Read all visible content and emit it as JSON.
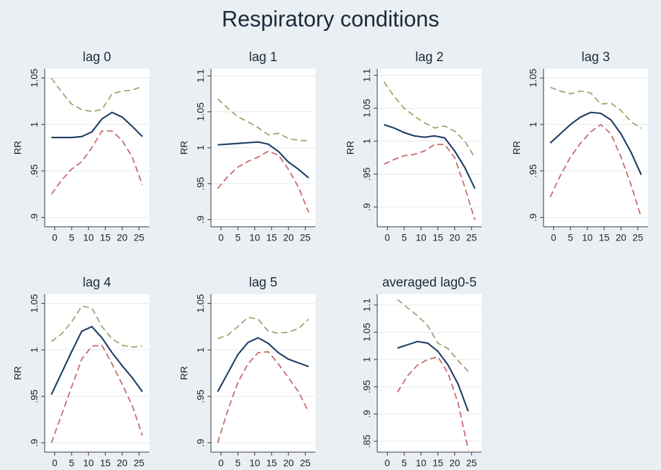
{
  "title": "Respiratory conditions",
  "chart_data": [
    {
      "type": "line",
      "title": "lag 0",
      "ylabel": "RR",
      "grid": true,
      "x": [
        -1,
        2,
        5,
        8,
        11,
        14,
        17,
        20,
        23,
        26
      ],
      "xlim": [
        -3,
        28
      ],
      "xticks": [
        0,
        5,
        10,
        15,
        20,
        25
      ],
      "ylim": [
        0.89,
        1.06
      ],
      "yticks": [
        {
          "value": 0.9,
          "label": ".9"
        },
        {
          "value": 0.95,
          "label": ".95"
        },
        1,
        1.05
      ],
      "series": [
        {
          "color": "#1f3f66",
          "dash": false,
          "values": [
            0.986,
            0.986,
            0.986,
            0.987,
            0.992,
            1.006,
            1.013,
            1.008,
            0.998,
            0.987
          ]
        },
        {
          "color": "#9ba46e",
          "dash": true,
          "values": [
            1.05,
            1.035,
            1.022,
            1.016,
            1.014,
            1.016,
            1.033,
            1.036,
            1.037,
            1.041
          ]
        },
        {
          "color": "#c76767",
          "dash": true,
          "values": [
            0.925,
            0.94,
            0.952,
            0.96,
            0.975,
            0.993,
            0.993,
            0.983,
            0.965,
            0.935
          ]
        }
      ]
    },
    {
      "type": "line",
      "title": "lag 1",
      "ylabel": "RR",
      "grid": true,
      "x": [
        -1,
        2,
        5,
        8,
        11,
        14,
        17,
        20,
        23,
        26
      ],
      "xlim": [
        -3,
        28
      ],
      "xticks": [
        0,
        5,
        10,
        15,
        20,
        25
      ],
      "ylim": [
        0.89,
        1.11
      ],
      "yticks": [
        {
          "value": 0.9,
          "label": ".9"
        },
        {
          "value": 0.95,
          "label": ".95"
        },
        1,
        1.05,
        1.1
      ],
      "series": [
        {
          "color": "#1f3f66",
          "dash": false,
          "values": [
            1.004,
            1.005,
            1.006,
            1.007,
            1.008,
            1.005,
            0.995,
            0.98,
            0.97,
            0.958
          ]
        },
        {
          "color": "#9ba46e",
          "dash": true,
          "values": [
            1.068,
            1.055,
            1.043,
            1.036,
            1.028,
            1.018,
            1.02,
            1.013,
            1.01,
            1.01
          ]
        },
        {
          "color": "#c76767",
          "dash": true,
          "values": [
            0.943,
            0.96,
            0.973,
            0.981,
            0.987,
            0.995,
            0.99,
            0.97,
            0.945,
            0.91
          ]
        }
      ]
    },
    {
      "type": "line",
      "title": "lag 2",
      "ylabel": "RR",
      "grid": true,
      "x": [
        -1,
        2,
        5,
        8,
        11,
        14,
        17,
        20,
        23,
        26
      ],
      "xlim": [
        -3,
        28
      ],
      "xticks": [
        0,
        5,
        10,
        15,
        20,
        25
      ],
      "ylim": [
        0.87,
        1.11
      ],
      "yticks": [
        {
          "value": 0.9,
          "label": ".9"
        },
        {
          "value": 0.95,
          "label": ".95"
        },
        1,
        1.05,
        1.1
      ],
      "series": [
        {
          "color": "#1f3f66",
          "dash": false,
          "values": [
            1.025,
            1.02,
            1.013,
            1.008,
            1.006,
            1.008,
            1.005,
            0.985,
            0.96,
            0.928
          ]
        },
        {
          "color": "#9ba46e",
          "dash": true,
          "values": [
            1.09,
            1.068,
            1.05,
            1.038,
            1.028,
            1.02,
            1.023,
            1.015,
            1.0,
            0.975
          ]
        },
        {
          "color": "#c76767",
          "dash": true,
          "values": [
            0.965,
            0.972,
            0.978,
            0.98,
            0.985,
            0.995,
            0.995,
            0.975,
            0.93,
            0.88
          ]
        }
      ]
    },
    {
      "type": "line",
      "title": "lag 3",
      "ylabel": "RR",
      "grid": true,
      "x": [
        -1,
        2,
        5,
        8,
        11,
        14,
        17,
        20,
        23,
        26
      ],
      "xlim": [
        -3,
        28
      ],
      "xticks": [
        0,
        5,
        10,
        15,
        20,
        25
      ],
      "ylim": [
        0.89,
        1.06
      ],
      "yticks": [
        {
          "value": 0.9,
          "label": ".9"
        },
        {
          "value": 0.95,
          "label": ".95"
        },
        1,
        1.05
      ],
      "series": [
        {
          "color": "#1f3f66",
          "dash": false,
          "values": [
            0.98,
            0.99,
            1.0,
            1.008,
            1.013,
            1.012,
            1.005,
            0.99,
            0.97,
            0.946
          ]
        },
        {
          "color": "#9ba46e",
          "dash": true,
          "values": [
            1.04,
            1.036,
            1.033,
            1.036,
            1.034,
            1.022,
            1.023,
            1.015,
            1.003,
            0.996
          ]
        },
        {
          "color": "#c76767",
          "dash": true,
          "values": [
            0.922,
            0.945,
            0.965,
            0.98,
            0.992,
            1.0,
            0.99,
            0.965,
            0.935,
            0.9
          ]
        }
      ]
    },
    {
      "type": "line",
      "title": "lag 4",
      "ylabel": "RR",
      "grid": true,
      "x": [
        -1,
        2,
        5,
        8,
        11,
        14,
        17,
        20,
        23,
        26
      ],
      "xlim": [
        -3,
        28
      ],
      "xticks": [
        0,
        5,
        10,
        15,
        20,
        25
      ],
      "ylim": [
        0.89,
        1.06
      ],
      "yticks": [
        {
          "value": 0.9,
          "label": ".9"
        },
        {
          "value": 0.95,
          "label": ".95"
        },
        1,
        1.05
      ],
      "series": [
        {
          "color": "#1f3f66",
          "dash": false,
          "values": [
            0.952,
            0.975,
            0.998,
            1.02,
            1.025,
            1.013,
            0.997,
            0.983,
            0.97,
            0.955
          ]
        },
        {
          "color": "#9ba46e",
          "dash": true,
          "values": [
            1.009,
            1.017,
            1.03,
            1.047,
            1.045,
            1.025,
            1.012,
            1.005,
            1.003,
            1.004
          ]
        },
        {
          "color": "#c76767",
          "dash": true,
          "values": [
            0.9,
            0.93,
            0.96,
            0.99,
            1.004,
            1.005,
            0.985,
            0.963,
            0.94,
            0.908
          ]
        }
      ]
    },
    {
      "type": "line",
      "title": "lag 5",
      "ylabel": "RR",
      "grid": true,
      "x": [
        -1,
        2,
        5,
        8,
        11,
        14,
        17,
        20,
        23,
        26
      ],
      "xlim": [
        -3,
        28
      ],
      "xticks": [
        0,
        5,
        10,
        15,
        20,
        25
      ],
      "ylim": [
        0.89,
        1.06
      ],
      "yticks": [
        {
          "value": 0.9,
          "label": ".9"
        },
        {
          "value": 0.95,
          "label": ".95"
        },
        1,
        1.05
      ],
      "series": [
        {
          "color": "#1f3f66",
          "dash": false,
          "values": [
            0.955,
            0.975,
            0.995,
            1.008,
            1.013,
            1.007,
            0.997,
            0.99,
            0.986,
            0.982
          ]
        },
        {
          "color": "#9ba46e",
          "dash": true,
          "values": [
            1.012,
            1.016,
            1.025,
            1.035,
            1.033,
            1.02,
            1.018,
            1.019,
            1.023,
            1.033
          ]
        },
        {
          "color": "#c76767",
          "dash": true,
          "values": [
            0.9,
            0.935,
            0.965,
            0.985,
            0.997,
            0.998,
            0.985,
            0.97,
            0.955,
            0.933
          ]
        }
      ]
    },
    {
      "type": "line",
      "title": "averaged lag0-5",
      "grid": true,
      "x": [
        3,
        6,
        9,
        12,
        15,
        18,
        21,
        24
      ],
      "xlim": [
        -3,
        28
      ],
      "xticks": [
        0,
        5,
        10,
        15,
        20,
        25
      ],
      "ylim": [
        0.83,
        1.12
      ],
      "yticks": [
        {
          "value": 0.85,
          "label": ".85"
        },
        {
          "value": 0.9,
          "label": ".9"
        },
        {
          "value": 0.95,
          "label": ".95"
        },
        1,
        1.05,
        1.1
      ],
      "series": [
        {
          "color": "#1f3f66",
          "dash": false,
          "values": [
            1.021,
            1.027,
            1.033,
            1.03,
            1.015,
            0.99,
            0.955,
            0.905
          ]
        },
        {
          "color": "#9ba46e",
          "dash": true,
          "values": [
            1.11,
            1.095,
            1.08,
            1.062,
            1.03,
            1.02,
            0.998,
            0.978
          ]
        },
        {
          "color": "#c76767",
          "dash": true,
          "values": [
            0.94,
            0.97,
            0.99,
            1.0,
            1.005,
            0.975,
            0.92,
            0.835
          ]
        }
      ]
    }
  ]
}
